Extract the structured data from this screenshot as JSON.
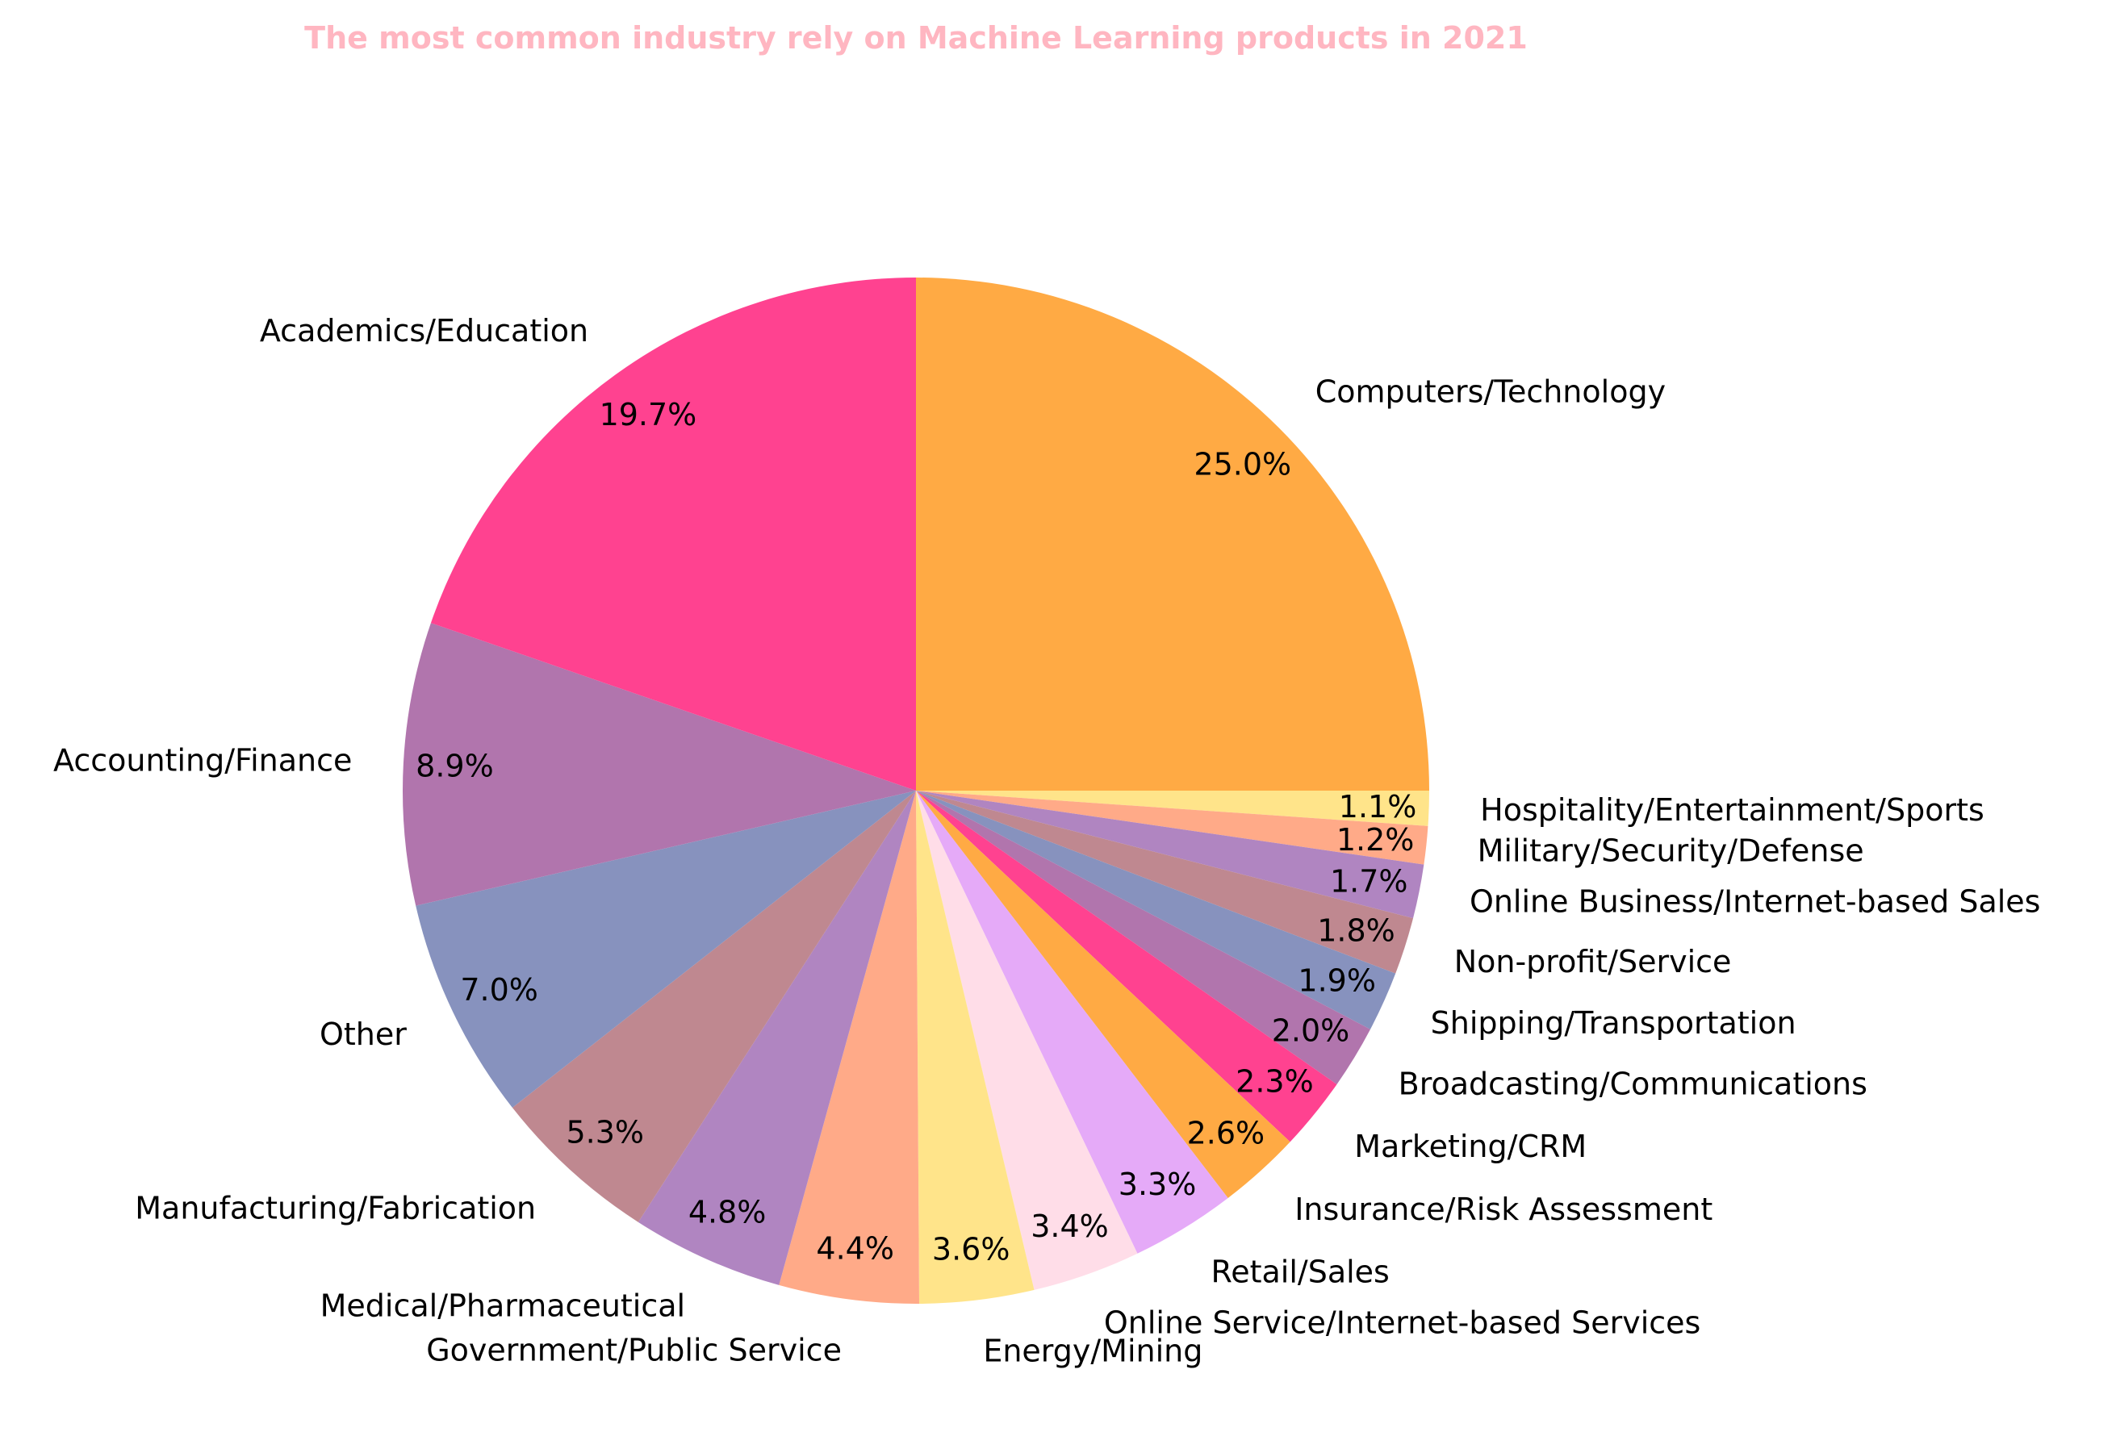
{
  "chart_data": {
    "type": "pie",
    "title": "The most common industry rely on Machine Learning products in 2021",
    "start_angle_deg": 90,
    "direction": "clockwise",
    "slices": [
      {
        "label": "Computers/Technology",
        "value": 25.0,
        "pct_text": "25.0%",
        "color": "#ffaa44"
      },
      {
        "label": "Hospitality/Entertainment/Sports",
        "value": 1.1,
        "pct_text": "1.1%",
        "color": "#ffe48a"
      },
      {
        "label": "Military/Security/Defense",
        "value": 1.2,
        "pct_text": "1.2%",
        "color": "#ffaa88"
      },
      {
        "label": "Online Business/Internet-based Sales",
        "value": 1.7,
        "pct_text": "1.7%",
        "color": "#b085c1"
      },
      {
        "label": "Non-profit/Service",
        "value": 1.8,
        "pct_text": "1.8%",
        "color": "#bf8890"
      },
      {
        "label": "Shipping/Transportation",
        "value": 1.9,
        "pct_text": "1.9%",
        "color": "#8792be"
      },
      {
        "label": "Broadcasting/Communications",
        "value": 2.0,
        "pct_text": "2.0%",
        "color": "#b175ad"
      },
      {
        "label": "Marketing/CRM",
        "value": 2.3,
        "pct_text": "2.3%",
        "color": "#ff4290"
      },
      {
        "label": "Insurance/Risk Assessment",
        "value": 2.6,
        "pct_text": "2.6%",
        "color": "#ffaa44"
      },
      {
        "label": "Retail/Sales",
        "value": 3.3,
        "pct_text": "3.3%",
        "color": "#e5aaf8"
      },
      {
        "label": "Online Service/Internet-based Services",
        "value": 3.4,
        "pct_text": "3.4%",
        "color": "#ffdde8"
      },
      {
        "label": "Energy/Mining",
        "value": 3.6,
        "pct_text": "3.6%",
        "color": "#ffe48a"
      },
      {
        "label": "Government/Public Service",
        "value": 4.4,
        "pct_text": "4.4%",
        "color": "#ffaa88"
      },
      {
        "label": "Medical/Pharmaceutical",
        "value": 4.8,
        "pct_text": "4.8%",
        "color": "#b085c1"
      },
      {
        "label": "Manufacturing/Fabrication",
        "value": 5.3,
        "pct_text": "5.3%",
        "color": "#bf8890"
      },
      {
        "label": "Other",
        "value": 7.0,
        "pct_text": "7.0%",
        "color": "#8792be"
      },
      {
        "label": "Accounting/Finance",
        "value": 8.9,
        "pct_text": "8.9%",
        "color": "#b175ad"
      },
      {
        "label": "Academics/Education",
        "value": 19.7,
        "pct_text": "19.7%",
        "color": "#ff4290"
      }
    ]
  }
}
